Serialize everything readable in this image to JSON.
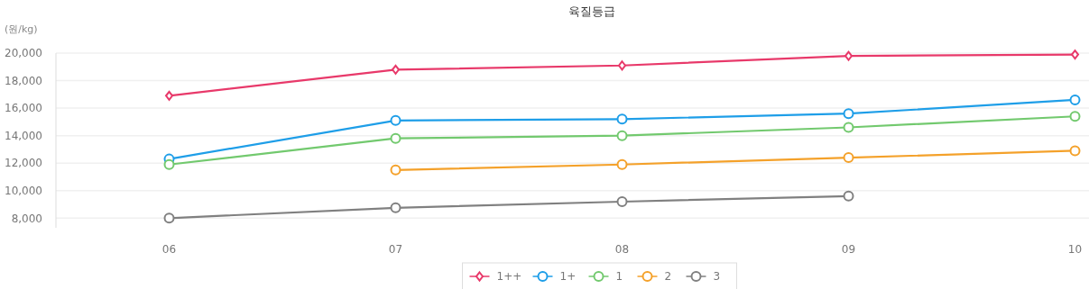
{
  "chart_data": {
    "type": "line",
    "title": "육질등급",
    "ylabel": "(원/kg)",
    "categories": [
      "06",
      "07",
      "08",
      "09",
      "10"
    ],
    "ylim": [
      7300,
      20000
    ],
    "yticks": [
      {
        "value": 8000,
        "label": "8,000"
      },
      {
        "value": 10000,
        "label": "10,000"
      },
      {
        "value": 12000,
        "label": "12,000"
      },
      {
        "value": 14000,
        "label": "14,000"
      },
      {
        "value": 16000,
        "label": "16,000"
      },
      {
        "value": 18000,
        "label": "18,000"
      },
      {
        "value": 20000,
        "label": "20,000"
      }
    ],
    "grid": "y",
    "legend": "bottom",
    "series": [
      {
        "name": "1++",
        "color": "#e8396a",
        "marker": "diamond",
        "values": [
          16900,
          18800,
          19100,
          19800,
          19900
        ]
      },
      {
        "name": "1+",
        "color": "#1e9ee8",
        "marker": "circle",
        "values": [
          12300,
          15100,
          15200,
          15600,
          16600
        ]
      },
      {
        "name": "1",
        "color": "#72c96e",
        "marker": "circle",
        "values": [
          11900,
          13800,
          14000,
          14600,
          15400
        ]
      },
      {
        "name": "2",
        "color": "#f4a12a",
        "marker": "circle",
        "values": [
          null,
          11500,
          11900,
          12400,
          12900
        ]
      },
      {
        "name": "3",
        "color": "#808080",
        "marker": "circle",
        "values": [
          8000,
          8750,
          9200,
          9600,
          null
        ]
      }
    ]
  }
}
